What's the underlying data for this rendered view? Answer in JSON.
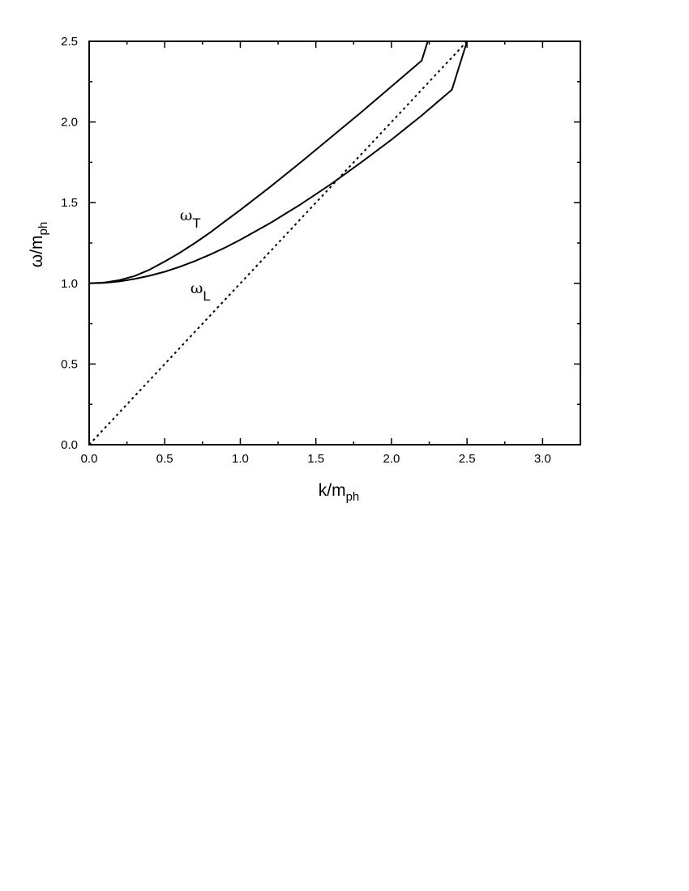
{
  "chart_data": {
    "type": "line",
    "xlabel": {
      "main": "k/m",
      "sub": "ph"
    },
    "ylabel": {
      "main": "ω/m",
      "sub": "ph"
    },
    "xlim": [
      0.0,
      3.25
    ],
    "ylim": [
      0.0,
      2.5
    ],
    "x_ticks": [
      "0.0",
      "0.5",
      "1.0",
      "1.5",
      "2.0",
      "2.5",
      "3.0"
    ],
    "y_ticks": [
      "0.0",
      "0.5",
      "1.0",
      "1.5",
      "2.0",
      "2.5"
    ],
    "x_tick_values": [
      0,
      0.5,
      1.0,
      1.5,
      2.0,
      2.5,
      3.0
    ],
    "y_tick_values": [
      0,
      0.5,
      1.0,
      1.5,
      2.0,
      2.5
    ],
    "x_minor_step": 0.25,
    "y_minor_step": 0.25,
    "grid": false,
    "series": [
      {
        "name": "ωT",
        "label_main": "ω",
        "label_sub": "T",
        "label_at": [
          0.6,
          1.39
        ],
        "style": "solid",
        "x": [
          0.0,
          0.1,
          0.2,
          0.3,
          0.4,
          0.5,
          0.6,
          0.7,
          0.8,
          0.9,
          1.0,
          1.2,
          1.4,
          1.6,
          1.8,
          2.0,
          2.2,
          2.24
        ],
        "y": [
          1.0,
          1.005,
          1.02,
          1.045,
          1.085,
          1.135,
          1.19,
          1.25,
          1.315,
          1.385,
          1.455,
          1.6,
          1.75,
          1.905,
          2.06,
          2.22,
          2.38,
          2.5
        ]
      },
      {
        "name": "ωL",
        "label_main": "ω",
        "label_sub": "L",
        "label_at": [
          0.67,
          0.94
        ],
        "style": "solid",
        "x": [
          0.0,
          0.1,
          0.2,
          0.3,
          0.4,
          0.5,
          0.6,
          0.7,
          0.8,
          0.9,
          1.0,
          1.2,
          1.4,
          1.6,
          1.8,
          2.0,
          2.2,
          2.4,
          2.5
        ],
        "y": [
          1.0,
          1.003,
          1.012,
          1.027,
          1.047,
          1.072,
          1.103,
          1.138,
          1.178,
          1.222,
          1.27,
          1.375,
          1.49,
          1.615,
          1.75,
          1.89,
          2.04,
          2.2,
          2.5
        ]
      },
      {
        "name": "ω = k",
        "style": "dotted",
        "x": [
          0.0,
          2.5
        ],
        "y": [
          0.0,
          2.5
        ]
      }
    ]
  }
}
